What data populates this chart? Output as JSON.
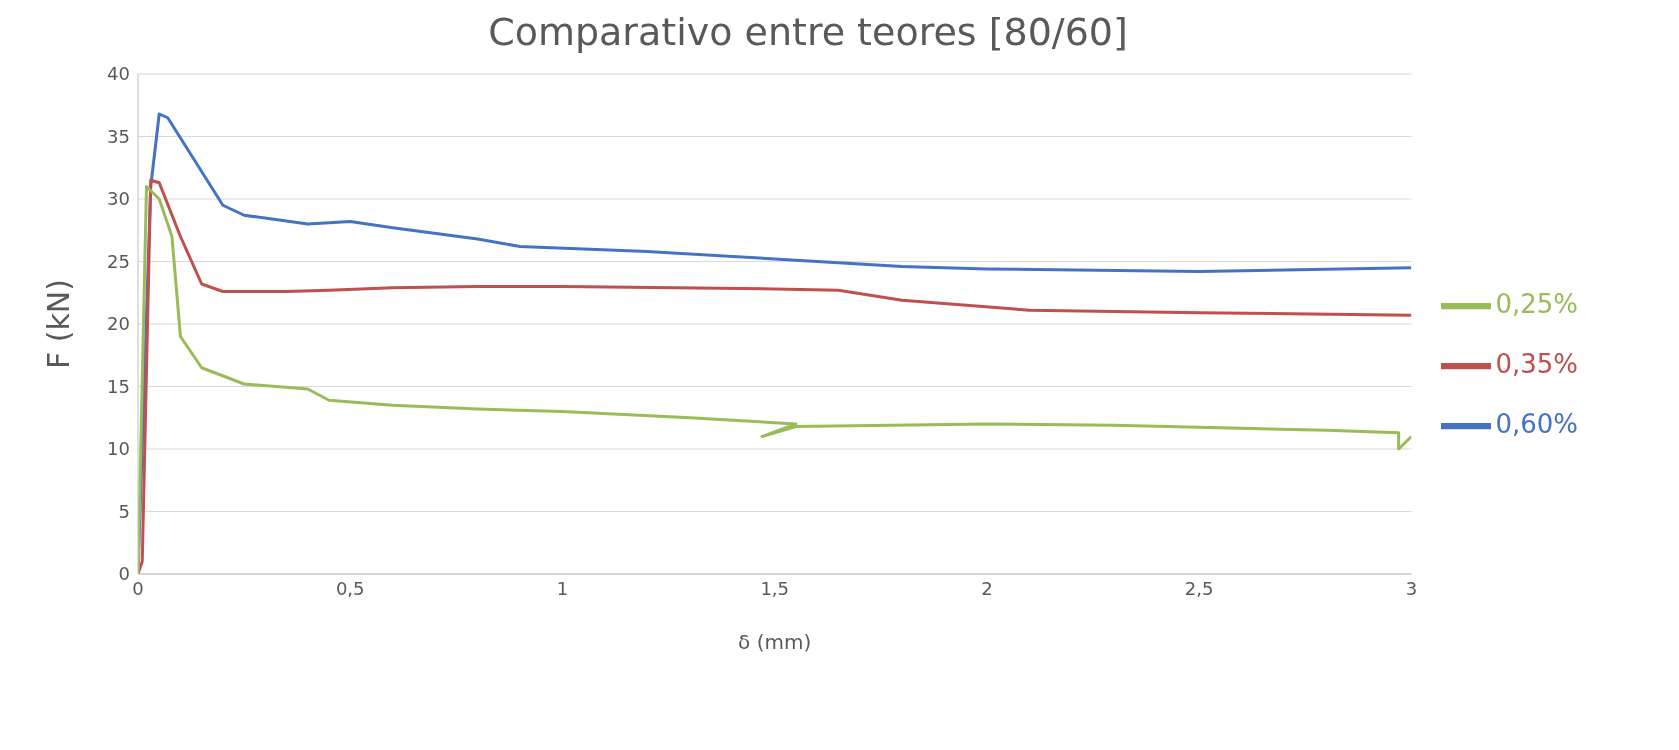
{
  "chart_data": {
    "type": "line",
    "title": "Comparativo entre teores [80/60]",
    "xlabel": "δ (mm)",
    "ylabel": "F (kN)",
    "xlim": [
      0,
      3
    ],
    "xticks": [
      0,
      {
        "value": 0.5,
        "label": "0,5"
      },
      1,
      {
        "value": 1.5,
        "label": "1,5"
      },
      2,
      {
        "value": 2.5,
        "label": "2,5"
      },
      3
    ],
    "ylim": [
      0,
      40
    ],
    "yticks": [
      0,
      5,
      10,
      15,
      20,
      25,
      30,
      35,
      40
    ],
    "grid": "y",
    "legend": "right",
    "marker": "none",
    "line_style": "solid",
    "series": [
      {
        "name": "0,60%",
        "color": "#4472c4",
        "x": [
          0,
          0.03,
          0.05,
          0.07,
          0.2,
          0.25,
          0.4,
          0.5,
          0.6,
          0.8,
          0.9,
          1.2,
          1.5,
          1.8,
          2,
          2.5,
          3
        ],
        "values": [
          0,
          31,
          36.8,
          36.5,
          29.5,
          28.7,
          28,
          28.2,
          27.7,
          26.8,
          26.2,
          25.8,
          25.2,
          24.6,
          24.4,
          24.2,
          24.5
        ]
      },
      {
        "name": "0,35%",
        "color": "#c0504d",
        "x": [
          0,
          0.01,
          0.03,
          0.05,
          0.1,
          0.15,
          0.2,
          0.35,
          0.45,
          0.6,
          0.8,
          1,
          1.5,
          1.65,
          1.8,
          2.1,
          2.5,
          3
        ],
        "values": [
          0,
          1,
          31.5,
          31.3,
          27,
          23.2,
          22.6,
          22.6,
          22.7,
          22.9,
          23,
          23,
          22.8,
          22.7,
          21.9,
          21.1,
          20.9,
          20.7
        ]
      },
      {
        "name": "0,25%",
        "color": "#9bbb59",
        "x": [
          0,
          0.02,
          0.05,
          0.08,
          0.1,
          0.15,
          0.25,
          0.4,
          0.45,
          0.6,
          0.8,
          1,
          1.3,
          1.55,
          1.47,
          1.55,
          2,
          2.3,
          2.8,
          2.97,
          2.97,
          3
        ],
        "values": [
          0,
          31,
          30,
          27,
          19,
          16.5,
          15.2,
          14.8,
          13.9,
          13.5,
          13.2,
          13,
          12.5,
          12,
          11,
          11.8,
          12,
          11.9,
          11.5,
          11.3,
          10,
          11
        ]
      }
    ]
  }
}
